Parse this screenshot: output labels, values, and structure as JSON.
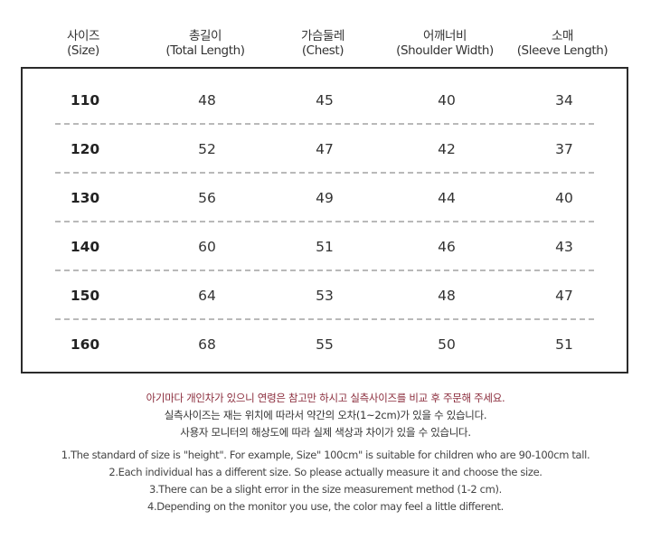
{
  "headers": [
    {
      "ko": "사이즈",
      "en": "(Size)"
    },
    {
      "ko": "총길이",
      "en": "(Total Length)"
    },
    {
      "ko": "가슴둘레",
      "en": "(Chest)"
    },
    {
      "ko": "어깨너비",
      "en": "(Shoulder Width)"
    },
    {
      "ko": "소매",
      "en": "(Sleeve Length)"
    }
  ],
  "rows": [
    {
      "size": "110",
      "total_length": "48",
      "chest": "45",
      "shoulder": "40",
      "sleeve": "34"
    },
    {
      "size": "120",
      "total_length": "52",
      "chest": "47",
      "shoulder": "42",
      "sleeve": "37"
    },
    {
      "size": "130",
      "total_length": "56",
      "chest": "49",
      "shoulder": "44",
      "sleeve": "40"
    },
    {
      "size": "140",
      "total_length": "60",
      "chest": "51",
      "shoulder": "46",
      "sleeve": "43"
    },
    {
      "size": "150",
      "total_length": "64",
      "chest": "53",
      "shoulder": "48",
      "sleeve": "47"
    },
    {
      "size": "160",
      "total_length": "68",
      "chest": "55",
      "shoulder": "50",
      "sleeve": "51"
    }
  ],
  "notes_ko": {
    "line1": "아기마다 개인차가 있으니 연령은 참고만 하시고 실측사이즈를 비교 후 주문해 주세요.",
    "line2": "실측사이즈는 재는 위치에 따라서 약간의  오차(1~2cm)가 있을 수 있습니다.",
    "line3": "사용자 모니터의 해상도에 따라 실제 색상과 차이가 있을 수 있습니다."
  },
  "notes_en": [
    "1.The standard of size is \"height\". For example,  Size\" 100cm\" is suitable for children who are 90-100cm tall.",
    "2.Each individual has a different size. So please actually measure it and choose the size.",
    "3.There can be a slight error in the size measurement method (1-2 cm).",
    "4.Depending on the monitor you use, the color may feel a little different."
  ],
  "colors": {
    "accent_note": "#8a2b3b",
    "border": "#2b2b2b",
    "divider": "#b9b9b9"
  }
}
